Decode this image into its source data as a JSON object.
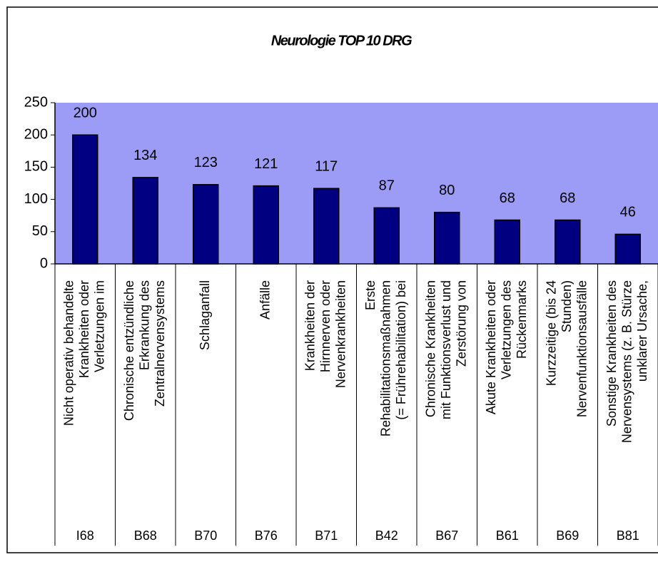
{
  "chart_data": {
    "type": "bar",
    "title": "Neurologie TOP 10 DRG",
    "categories": [
      [
        "Nicht operativ behandelte",
        "Krankheiten oder",
        "Verletzungen im"
      ],
      [
        "Chronische entzündliche",
        "Erkrankung des",
        "Zentralnervensystems"
      ],
      [
        "Schlaganfall"
      ],
      [
        "Anfälle"
      ],
      [
        "Krankheiten der",
        "Hirnnerven oder",
        "Nervenkrankheiten"
      ],
      [
        "Erste",
        "Rehabilitationsmaßnahmen",
        "(= Frührehabilitation) bei"
      ],
      [
        "Chronische Krankheiten",
        "mit Funktionsverlust und",
        "Zerstörung von"
      ],
      [
        "Akute Krankheiten oder",
        "Verletzungen des",
        "Rückenmarks"
      ],
      [
        "Kurzzeitige (bis 24",
        "Stunden)",
        "Nervenfunktionsausfälle"
      ],
      [
        "Sonstige Krankheiten des",
        "Nervensystems (z. B. Stürze",
        "unklarer Ursache,"
      ]
    ],
    "codes": [
      "I68",
      "B68",
      "B70",
      "B76",
      "B71",
      "B42",
      "B67",
      "B61",
      "B69",
      "B81"
    ],
    "values": [
      200,
      134,
      123,
      121,
      117,
      87,
      80,
      68,
      68,
      46
    ],
    "color": "#000080",
    "plot_background": "#9c9cf7",
    "ylim": [
      0,
      250
    ],
    "yticks": [
      0,
      50,
      100,
      150,
      200,
      250
    ],
    "grid": false
  }
}
